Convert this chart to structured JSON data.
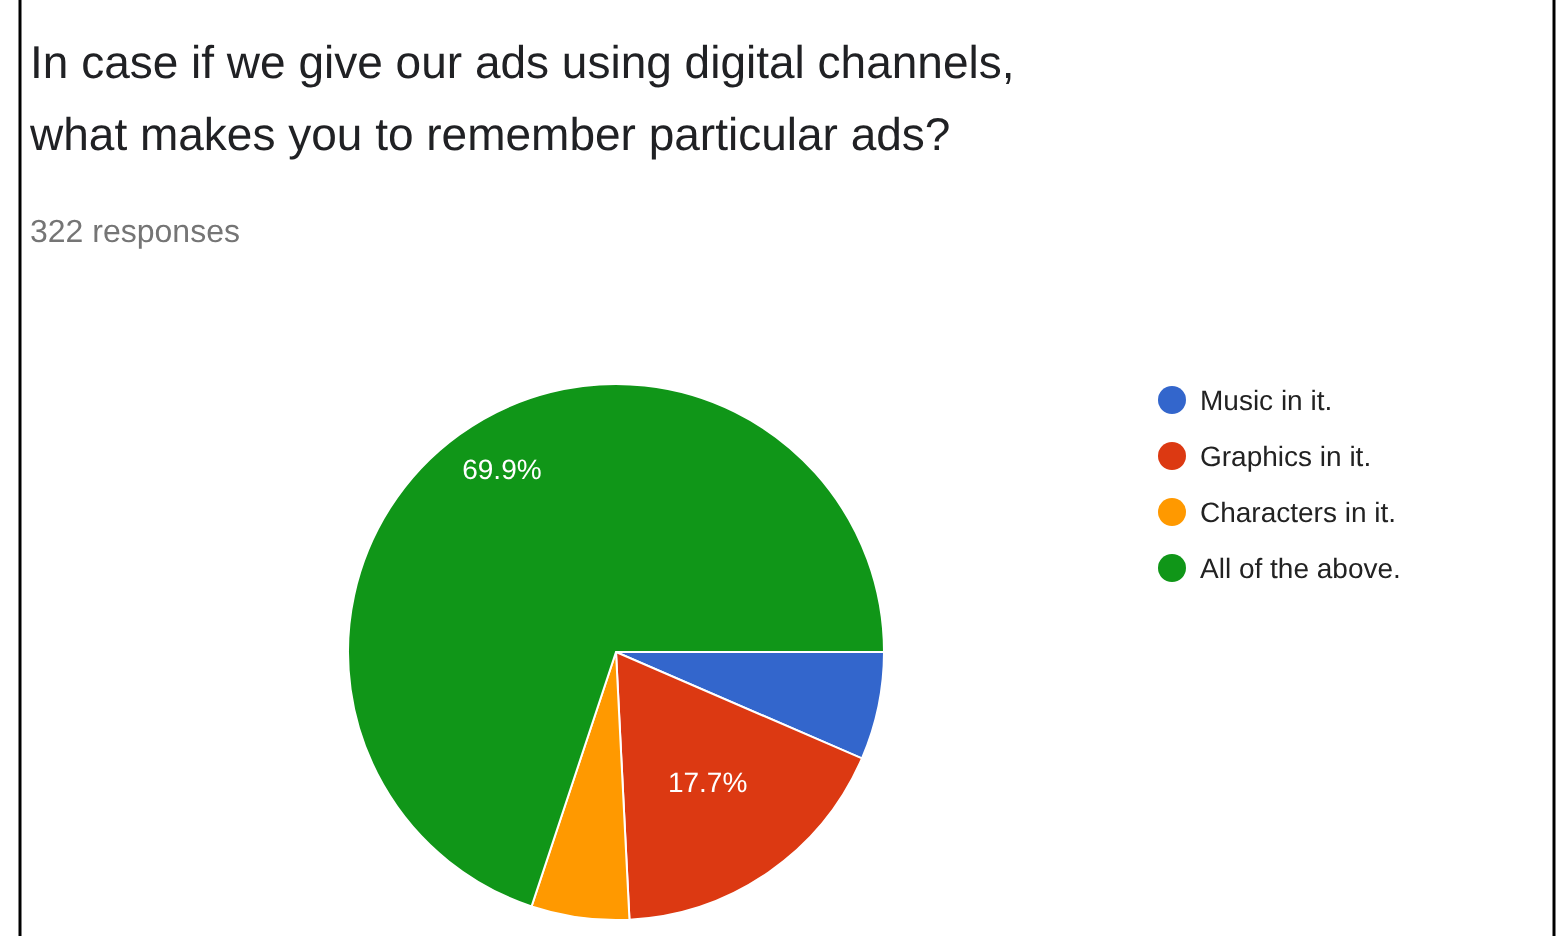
{
  "chart_data": {
    "type": "pie",
    "title": "In case if we give our ads using digital channels, what makes you to remember particular ads?",
    "subtitle": "322 responses",
    "categories": [
      "Music in it.",
      "Graphics in it.",
      "Characters in it.",
      "All of the above."
    ],
    "values": [
      6.5,
      17.7,
      5.9,
      69.9
    ],
    "colors": [
      "#3366cc",
      "#dc3912",
      "#ff9900",
      "#109618"
    ],
    "value_labels": [
      null,
      "17.7%",
      null,
      "69.9%"
    ],
    "legend": "right"
  }
}
